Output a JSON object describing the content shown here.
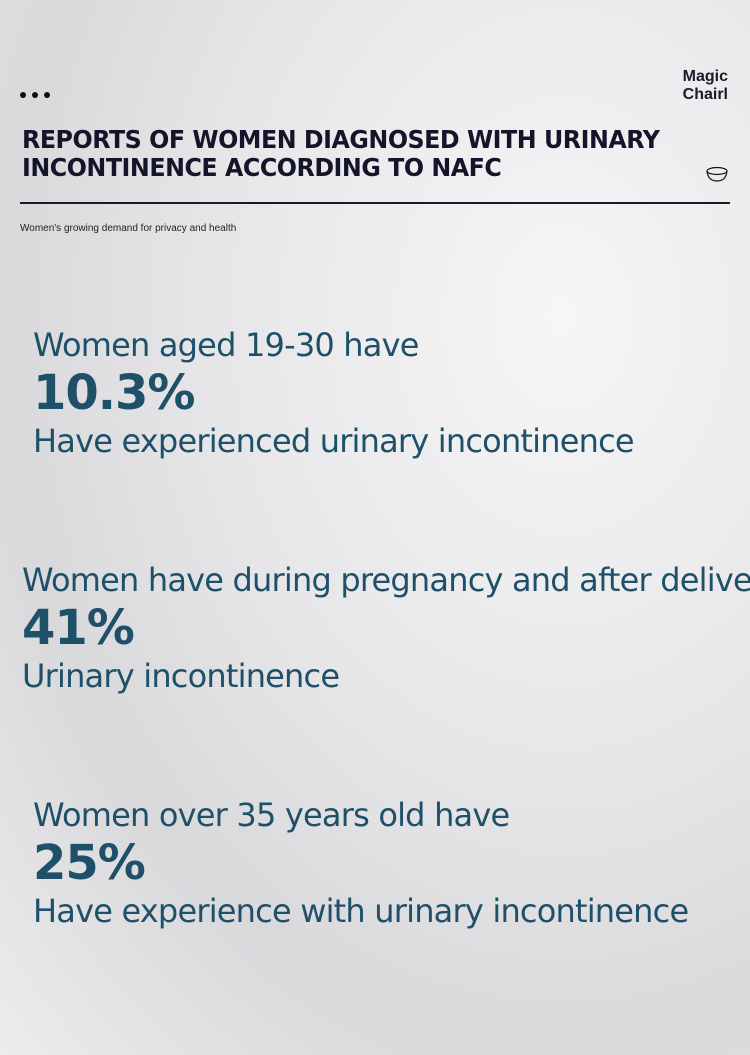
{
  "header": {
    "menu_icon": "three-dots-icon",
    "brand": [
      "Magic",
      "Chairl"
    ],
    "title": "REPORTS OF WOMEN DIAGNOSED WITH URINARY INCONTINENCE ACCORDING TO NAFC",
    "decor_icon": "cup-icon",
    "subtitle": "Women's growing demand for privacy and health"
  },
  "stats": [
    {
      "line1": "Women aged 19-30 have",
      "value": "10.3%",
      "line3": "Have experienced urinary incontinence"
    },
    {
      "line1": "Women have during pregnancy and after delivery",
      "value": "41%",
      "line3": "Urinary incontinence"
    },
    {
      "line1": "Women over 35 years old have",
      "value": "25%",
      "line3": "Have experience with urinary incontinence"
    }
  ],
  "colors": {
    "stat_text": "#1f506a",
    "title_text": "#14142a"
  }
}
